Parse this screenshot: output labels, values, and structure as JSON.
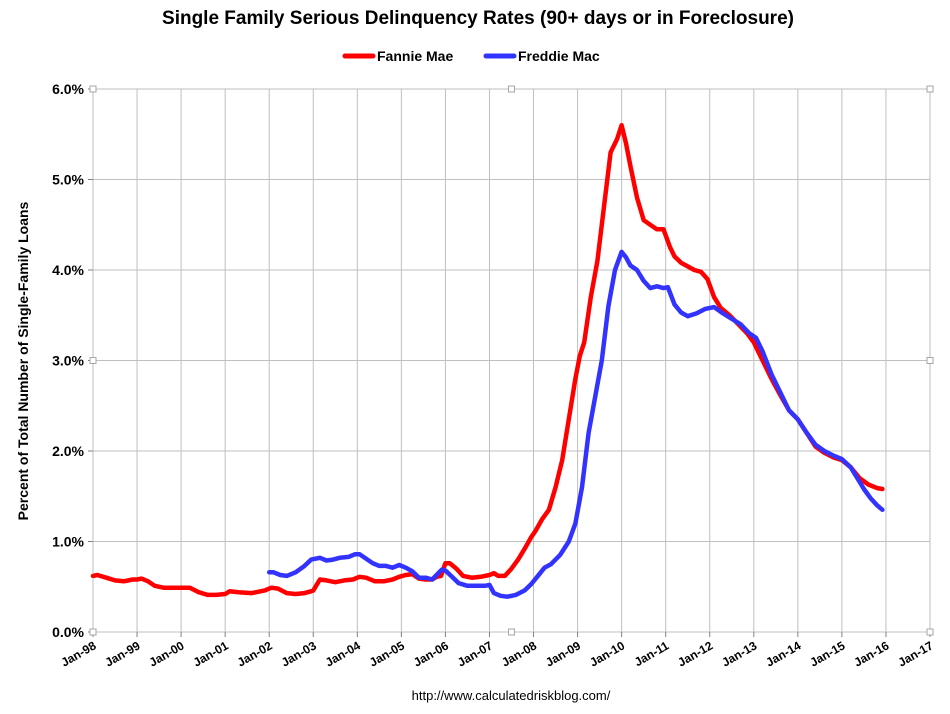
{
  "chart_data": {
    "type": "line",
    "title": "Single Family Serious Delinquency Rates (90+ days or in Foreclosure)",
    "ylabel": "Percent of Total Number of Single-Family Loans",
    "xlabel": "",
    "source": "http://www.calculatedriskblog.com/",
    "xlim": [
      1998,
      2017
    ],
    "ylim": [
      0,
      6
    ],
    "x_ticks": [
      "Jan-98",
      "Jan-99",
      "Jan-00",
      "Jan-01",
      "Jan-02",
      "Jan-03",
      "Jan-04",
      "Jan-05",
      "Jan-06",
      "Jan-07",
      "Jan-08",
      "Jan-09",
      "Jan-10",
      "Jan-11",
      "Jan-12",
      "Jan-13",
      "Jan-14",
      "Jan-15",
      "Jan-16",
      "Jan-17"
    ],
    "y_ticks": [
      "0.0%",
      "1.0%",
      "2.0%",
      "3.0%",
      "4.0%",
      "5.0%",
      "6.0%"
    ],
    "legend_position": "top-center",
    "series": [
      {
        "name": "Fannie Mae",
        "color": "#ff0000",
        "x": [
          1998.0,
          1998.1,
          1998.3,
          1998.5,
          1998.7,
          1998.9,
          1999.0,
          1999.1,
          1999.25,
          1999.4,
          1999.6,
          1999.9,
          2000.2,
          2000.4,
          2000.6,
          2000.8,
          2001.0,
          2001.1,
          2001.3,
          2001.6,
          2001.9,
          2002.05,
          2002.2,
          2002.4,
          2002.6,
          2002.8,
          2002.95,
          2003.0,
          2003.15,
          2003.3,
          2003.5,
          2003.7,
          2003.9,
          2004.05,
          2004.2,
          2004.4,
          2004.6,
          2004.8,
          2004.95,
          2005.1,
          2005.25,
          2005.4,
          2005.55,
          2005.7,
          2005.8,
          2005.9,
          2006.0,
          2006.1,
          2006.25,
          2006.4,
          2006.6,
          2006.8,
          2007.0,
          2007.1,
          2007.2,
          2007.35,
          2007.5,
          2007.65,
          2007.8,
          2007.95,
          2008.05,
          2008.2,
          2008.35,
          2008.5,
          2008.65,
          2008.8,
          2008.95,
          2009.05,
          2009.15,
          2009.3,
          2009.45,
          2009.6,
          2009.75,
          2009.9,
          2010.0,
          2010.1,
          2010.2,
          2010.35,
          2010.5,
          2010.65,
          2010.8,
          2010.95,
          2011.1,
          2011.2,
          2011.35,
          2011.5,
          2011.65,
          2011.8,
          2011.95,
          2012.1,
          2012.25,
          2012.45,
          2012.65,
          2012.85,
          2013.0,
          2013.2,
          2013.4,
          2013.6,
          2013.8,
          2014.0,
          2014.2,
          2014.4,
          2014.6,
          2014.8,
          2015.0,
          2015.2,
          2015.4,
          2015.6,
          2015.8,
          2015.92
        ],
        "values": [
          0.62,
          0.63,
          0.6,
          0.57,
          0.56,
          0.58,
          0.58,
          0.59,
          0.56,
          0.51,
          0.49,
          0.49,
          0.49,
          0.44,
          0.41,
          0.41,
          0.42,
          0.45,
          0.44,
          0.43,
          0.46,
          0.49,
          0.48,
          0.43,
          0.42,
          0.43,
          0.45,
          0.46,
          0.58,
          0.57,
          0.55,
          0.57,
          0.58,
          0.61,
          0.6,
          0.56,
          0.56,
          0.58,
          0.61,
          0.63,
          0.64,
          0.59,
          0.58,
          0.58,
          0.61,
          0.62,
          0.76,
          0.76,
          0.7,
          0.62,
          0.6,
          0.61,
          0.63,
          0.65,
          0.62,
          0.62,
          0.7,
          0.8,
          0.92,
          1.05,
          1.12,
          1.25,
          1.35,
          1.6,
          1.9,
          2.35,
          2.8,
          3.05,
          3.2,
          3.7,
          4.1,
          4.7,
          5.3,
          5.45,
          5.6,
          5.4,
          5.15,
          4.8,
          4.55,
          4.5,
          4.45,
          4.45,
          4.25,
          4.15,
          4.08,
          4.04,
          4.0,
          3.98,
          3.9,
          3.7,
          3.58,
          3.5,
          3.4,
          3.3,
          3.2,
          3.0,
          2.8,
          2.62,
          2.45,
          2.35,
          2.2,
          2.05,
          1.98,
          1.93,
          1.9,
          1.82,
          1.7,
          1.63,
          1.59,
          1.58
        ]
      },
      {
        "name": "Freddie Mac",
        "color": "#3333ff",
        "x": [
          2002.0,
          2002.1,
          2002.25,
          2002.4,
          2002.6,
          2002.8,
          2002.95,
          2003.05,
          2003.15,
          2003.3,
          2003.45,
          2003.6,
          2003.8,
          2003.95,
          2004.05,
          2004.2,
          2004.35,
          2004.5,
          2004.65,
          2004.8,
          2004.95,
          2005.1,
          2005.25,
          2005.4,
          2005.55,
          2005.7,
          2005.8,
          2005.92,
          2006.0,
          2006.15,
          2006.3,
          2006.5,
          2006.7,
          2006.9,
          2007.0,
          2007.1,
          2007.25,
          2007.4,
          2007.6,
          2007.8,
          2007.95,
          2008.1,
          2008.25,
          2008.4,
          2008.6,
          2008.8,
          2008.95,
          2009.1,
          2009.25,
          2009.4,
          2009.55,
          2009.7,
          2009.85,
          2010.0,
          2010.1,
          2010.2,
          2010.35,
          2010.5,
          2010.65,
          2010.8,
          2010.95,
          2011.05,
          2011.2,
          2011.35,
          2011.5,
          2011.7,
          2011.9,
          2012.1,
          2012.3,
          2012.5,
          2012.7,
          2012.9,
          2013.05,
          2013.2,
          2013.4,
          2013.6,
          2013.8,
          2014.0,
          2014.2,
          2014.4,
          2014.6,
          2014.8,
          2015.0,
          2015.2,
          2015.35,
          2015.5,
          2015.65,
          2015.8,
          2015.92
        ],
        "values": [
          0.66,
          0.66,
          0.63,
          0.62,
          0.66,
          0.73,
          0.8,
          0.81,
          0.82,
          0.79,
          0.8,
          0.82,
          0.83,
          0.86,
          0.86,
          0.81,
          0.76,
          0.73,
          0.73,
          0.71,
          0.74,
          0.71,
          0.67,
          0.6,
          0.6,
          0.58,
          0.63,
          0.69,
          0.68,
          0.61,
          0.54,
          0.51,
          0.51,
          0.51,
          0.52,
          0.43,
          0.4,
          0.39,
          0.41,
          0.46,
          0.53,
          0.62,
          0.71,
          0.75,
          0.85,
          1.0,
          1.2,
          1.6,
          2.2,
          2.6,
          3.0,
          3.6,
          4.0,
          4.2,
          4.14,
          4.05,
          4.0,
          3.88,
          3.8,
          3.82,
          3.8,
          3.81,
          3.62,
          3.53,
          3.49,
          3.52,
          3.57,
          3.59,
          3.52,
          3.46,
          3.4,
          3.3,
          3.25,
          3.1,
          2.85,
          2.65,
          2.45,
          2.35,
          2.2,
          2.07,
          2.0,
          1.95,
          1.91,
          1.82,
          1.7,
          1.58,
          1.48,
          1.4,
          1.35
        ]
      }
    ]
  }
}
